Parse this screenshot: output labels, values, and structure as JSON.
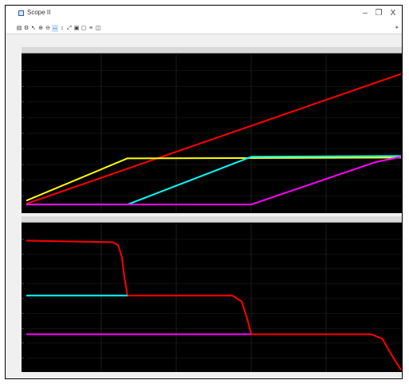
{
  "window": {
    "title": "Scope II",
    "minimize_glyph": "–",
    "restore_glyph": "❐",
    "close_glyph": "X"
  },
  "toolbar": {
    "icons": [
      "print-icon",
      "settings-icon",
      "cursor-icon",
      "zoom-in-icon",
      "zoom-out-icon",
      "zoom-x-icon",
      "zoom-y-icon",
      "autoscale-icon",
      "save-axes-icon",
      "restore-axes-icon",
      "params-icon",
      "signal-select-icon"
    ]
  },
  "chart_data": [
    {
      "type": "line",
      "title": "",
      "xlim": [
        0,
        10
      ],
      "ylim": [
        0,
        10
      ],
      "grid": true,
      "series": [
        {
          "color": "#ff0000",
          "x": [
            0,
            10
          ],
          "y": [
            0.5,
            8.8
          ]
        },
        {
          "color": "#ffff00",
          "x": [
            0,
            2.7,
            10
          ],
          "y": [
            0.7,
            3.4,
            3.45
          ]
        },
        {
          "color": "#00ffff",
          "x": [
            0,
            2.7,
            6,
            10
          ],
          "y": [
            0.45,
            0.45,
            3.5,
            3.55
          ]
        },
        {
          "color": "#ff00ff",
          "x": [
            0,
            6,
            9.3,
            10
          ],
          "y": [
            0.45,
            0.45,
            3.15,
            3.5
          ]
        }
      ]
    },
    {
      "type": "line",
      "title": "",
      "xlim": [
        0,
        10
      ],
      "ylim": [
        0,
        10
      ],
      "grid": true,
      "series": [
        {
          "color": "#ff0000",
          "x": [
            0,
            2.3,
            2.45,
            2.55,
            2.62,
            2.7,
            5.5,
            5.75,
            5.9,
            6.0,
            9.2,
            9.5,
            9.75,
            10
          ],
          "y": [
            8.9,
            8.8,
            8.6,
            7.8,
            6.4,
            5.2,
            5.2,
            4.8,
            3.6,
            2.6,
            2.6,
            2.3,
            1.2,
            0.2
          ]
        },
        {
          "color": "#00ffff",
          "x": [
            0,
            2.7
          ],
          "y": [
            5.2,
            5.2
          ]
        },
        {
          "color": "#ff00ff",
          "x": [
            0,
            6.0
          ],
          "y": [
            2.6,
            2.6
          ]
        }
      ]
    }
  ]
}
